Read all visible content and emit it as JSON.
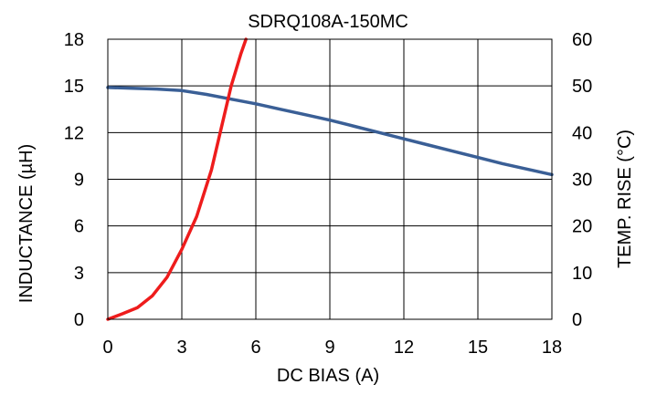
{
  "chart_data": {
    "type": "line",
    "title": "SDRQ108A-150MC",
    "xlabel": "DC BIAS (A)",
    "ylabel": "INDUCTANCE (µH)",
    "y2label": "TEMP. RISE (°C)",
    "xlim": [
      0,
      18
    ],
    "ylim": [
      0,
      18
    ],
    "y2lim": [
      0,
      60
    ],
    "xticks": [
      "0",
      "3",
      "6",
      "9",
      "12",
      "15",
      "18"
    ],
    "yticks": [
      "0",
      "3",
      "6",
      "9",
      "12",
      "15",
      "18"
    ],
    "y2ticks": [
      "0",
      "10",
      "20",
      "30",
      "40",
      "50",
      "60"
    ],
    "grid": true,
    "series": [
      {
        "axis": "left",
        "color": "#3a5f96",
        "x": [
          0,
          1,
          2,
          3,
          4,
          5,
          6,
          7,
          8,
          9,
          10,
          11,
          12,
          13,
          14,
          15,
          16,
          17,
          18
        ],
        "y": [
          14.9,
          14.85,
          14.8,
          14.7,
          14.45,
          14.15,
          13.85,
          13.5,
          13.15,
          12.8,
          12.4,
          12.0,
          11.6,
          11.2,
          10.8,
          10.4,
          10.0,
          9.65,
          9.3
        ]
      },
      {
        "axis": "right",
        "color": "#ee1c1c",
        "x": [
          0,
          0.6,
          1.2,
          1.8,
          2.4,
          3.0,
          3.6,
          4.2,
          4.6,
          5.0,
          5.4,
          5.6
        ],
        "y": [
          0,
          1.2,
          2.5,
          5.0,
          9.0,
          15.0,
          22.0,
          32.0,
          41.0,
          50.0,
          57.0,
          60.0
        ]
      }
    ]
  }
}
